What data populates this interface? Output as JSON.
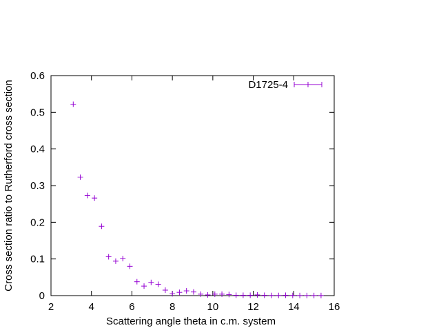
{
  "chart_data": {
    "type": "scatter",
    "title": "",
    "xlabel": "Scattering angle theta in c.m. system",
    "ylabel": "Cross section ratio to Rutherford cross section",
    "xlim": [
      2,
      16
    ],
    "ylim": [
      0,
      0.6
    ],
    "x_ticks": [
      "2",
      "4",
      "6",
      "8",
      "10",
      "12",
      "14",
      "16"
    ],
    "y_ticks": [
      "0",
      "0.1",
      "0.2",
      "0.3",
      "0.4",
      "0.5",
      "0.6"
    ],
    "grid": false,
    "legend_position": "top-right",
    "series_color": "#9400d3",
    "marker": "plus with horizontal error bar",
    "series": [
      {
        "name": "D1725-4",
        "points": [
          {
            "x": 3.1,
            "y": 0.522
          },
          {
            "x": 3.45,
            "y": 0.323
          },
          {
            "x": 3.8,
            "y": 0.273
          },
          {
            "x": 4.15,
            "y": 0.266
          },
          {
            "x": 4.5,
            "y": 0.189
          },
          {
            "x": 4.85,
            "y": 0.106
          },
          {
            "x": 5.2,
            "y": 0.094
          },
          {
            "x": 5.55,
            "y": 0.101
          },
          {
            "x": 5.9,
            "y": 0.08
          },
          {
            "x": 6.25,
            "y": 0.038
          },
          {
            "x": 6.6,
            "y": 0.026
          },
          {
            "x": 6.95,
            "y": 0.036
          },
          {
            "x": 7.3,
            "y": 0.031
          },
          {
            "x": 7.65,
            "y": 0.015
          },
          {
            "x": 8.0,
            "y": 0.005
          },
          {
            "x": 8.35,
            "y": 0.009
          },
          {
            "x": 8.7,
            "y": 0.013
          },
          {
            "x": 9.05,
            "y": 0.01
          },
          {
            "x": 9.4,
            "y": 0.004
          },
          {
            "x": 9.75,
            "y": 0.002
          },
          {
            "x": 10.1,
            "y": 0.004
          },
          {
            "x": 10.45,
            "y": 0.004
          },
          {
            "x": 10.8,
            "y": 0.003
          },
          {
            "x": 11.15,
            "y": 0.001
          },
          {
            "x": 11.5,
            "y": 0.001
          },
          {
            "x": 11.85,
            "y": 0.001
          },
          {
            "x": 12.2,
            "y": 0.002
          },
          {
            "x": 12.55,
            "y": 0.001
          },
          {
            "x": 12.9,
            "y": 0.0005
          },
          {
            "x": 13.25,
            "y": 0.0005
          },
          {
            "x": 13.6,
            "y": 0.001
          },
          {
            "x": 13.95,
            "y": 0.0005
          },
          {
            "x": 14.3,
            "y": 0.0003
          },
          {
            "x": 14.65,
            "y": 0.0003
          },
          {
            "x": 15.0,
            "y": 0.0003
          },
          {
            "x": 15.35,
            "y": 0.0003
          }
        ]
      }
    ]
  }
}
